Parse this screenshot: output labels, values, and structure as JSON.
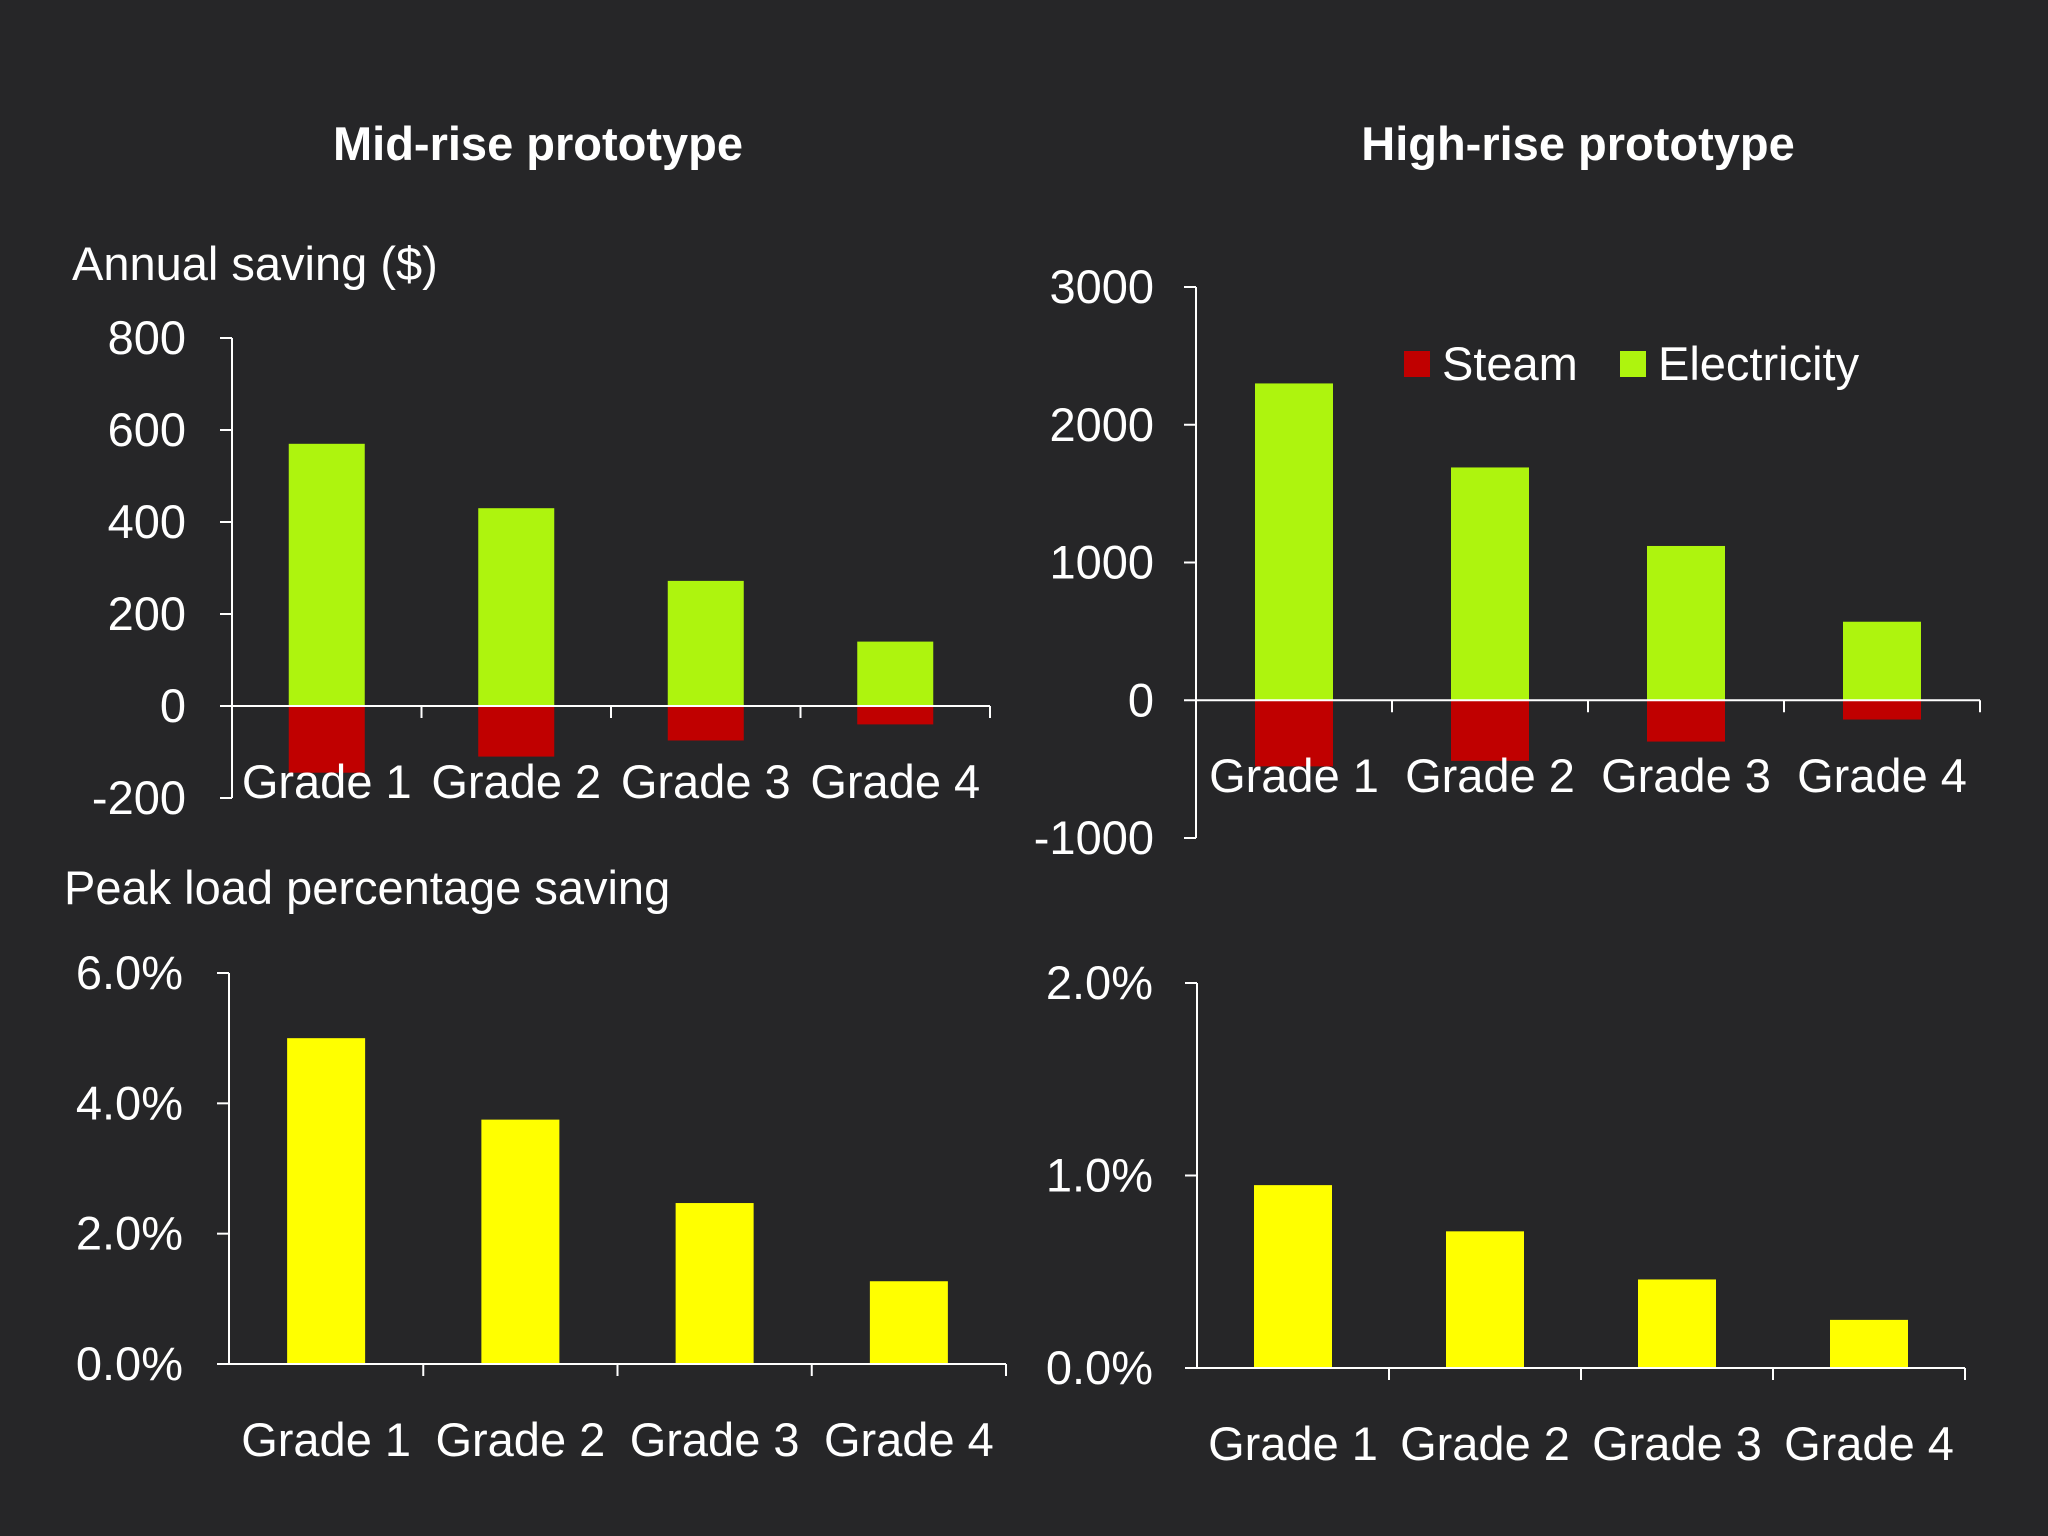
{
  "colors": {
    "background": "#262628",
    "steam": "#c00000",
    "electricity": "#aef40e",
    "peak": "#ffff00",
    "axis": "#ffffff",
    "text": "#ffffff"
  },
  "titles": {
    "mid": "Mid-rise prototype",
    "high": "High-rise prototype"
  },
  "labels": {
    "annual_saving": "Annual saving ($)",
    "peak_load": "Peak load percentage saving"
  },
  "legend": {
    "steam": "Steam",
    "electricity": "Electricity"
  },
  "chart_data": [
    {
      "id": "mid-annual",
      "type": "bar",
      "title": "Mid-rise prototype",
      "ylabel": "Annual saving ($)",
      "categories": [
        "Grade 1",
        "Grade 2",
        "Grade 3",
        "Grade 4"
      ],
      "series": [
        {
          "name": "Steam",
          "values": [
            -145,
            -110,
            -75,
            -40
          ]
        },
        {
          "name": "Electricity",
          "values": [
            570,
            430,
            272,
            140
          ]
        }
      ],
      "ylim": [
        -200,
        800
      ],
      "yticks": [
        "800",
        "600",
        "400",
        "200",
        "0",
        "-200"
      ],
      "ytick_values": [
        800,
        600,
        400,
        200,
        0,
        -200
      ]
    },
    {
      "id": "high-annual",
      "type": "bar",
      "title": "High-rise prototype",
      "ylabel": "",
      "categories": [
        "Grade 1",
        "Grade 2",
        "Grade 3",
        "Grade 4"
      ],
      "series": [
        {
          "name": "Steam",
          "values": [
            -480,
            -440,
            -300,
            -140
          ]
        },
        {
          "name": "Electricity",
          "values": [
            2300,
            1690,
            1120,
            570
          ]
        }
      ],
      "ylim": [
        -1000,
        3000
      ],
      "yticks": [
        "3000",
        "2000",
        "1000",
        "0",
        "-1000"
      ],
      "ytick_values": [
        3000,
        2000,
        1000,
        0,
        -1000
      ],
      "legend_position": "top-right"
    },
    {
      "id": "mid-peak",
      "type": "bar",
      "ylabel": "Peak load percentage saving",
      "categories": [
        "Grade 1",
        "Grade 2",
        "Grade 3",
        "Grade 4"
      ],
      "series": [
        {
          "name": "Peak load saving (%)",
          "values": [
            5.0,
            3.75,
            2.47,
            1.27
          ]
        }
      ],
      "ylim": [
        0,
        6
      ],
      "yticks": [
        "6.0%",
        "4.0%",
        "2.0%",
        "0.0%"
      ],
      "ytick_values": [
        6,
        4,
        2,
        0
      ]
    },
    {
      "id": "high-peak",
      "type": "bar",
      "ylabel": "",
      "categories": [
        "Grade 1",
        "Grade 2",
        "Grade 3",
        "Grade 4"
      ],
      "series": [
        {
          "name": "Peak load saving (%)",
          "values": [
            0.95,
            0.71,
            0.46,
            0.25
          ]
        }
      ],
      "ylim": [
        0,
        2
      ],
      "yticks": [
        "2.0%",
        "1.0%",
        "0.0%"
      ],
      "ytick_values": [
        2,
        1,
        0
      ]
    }
  ]
}
